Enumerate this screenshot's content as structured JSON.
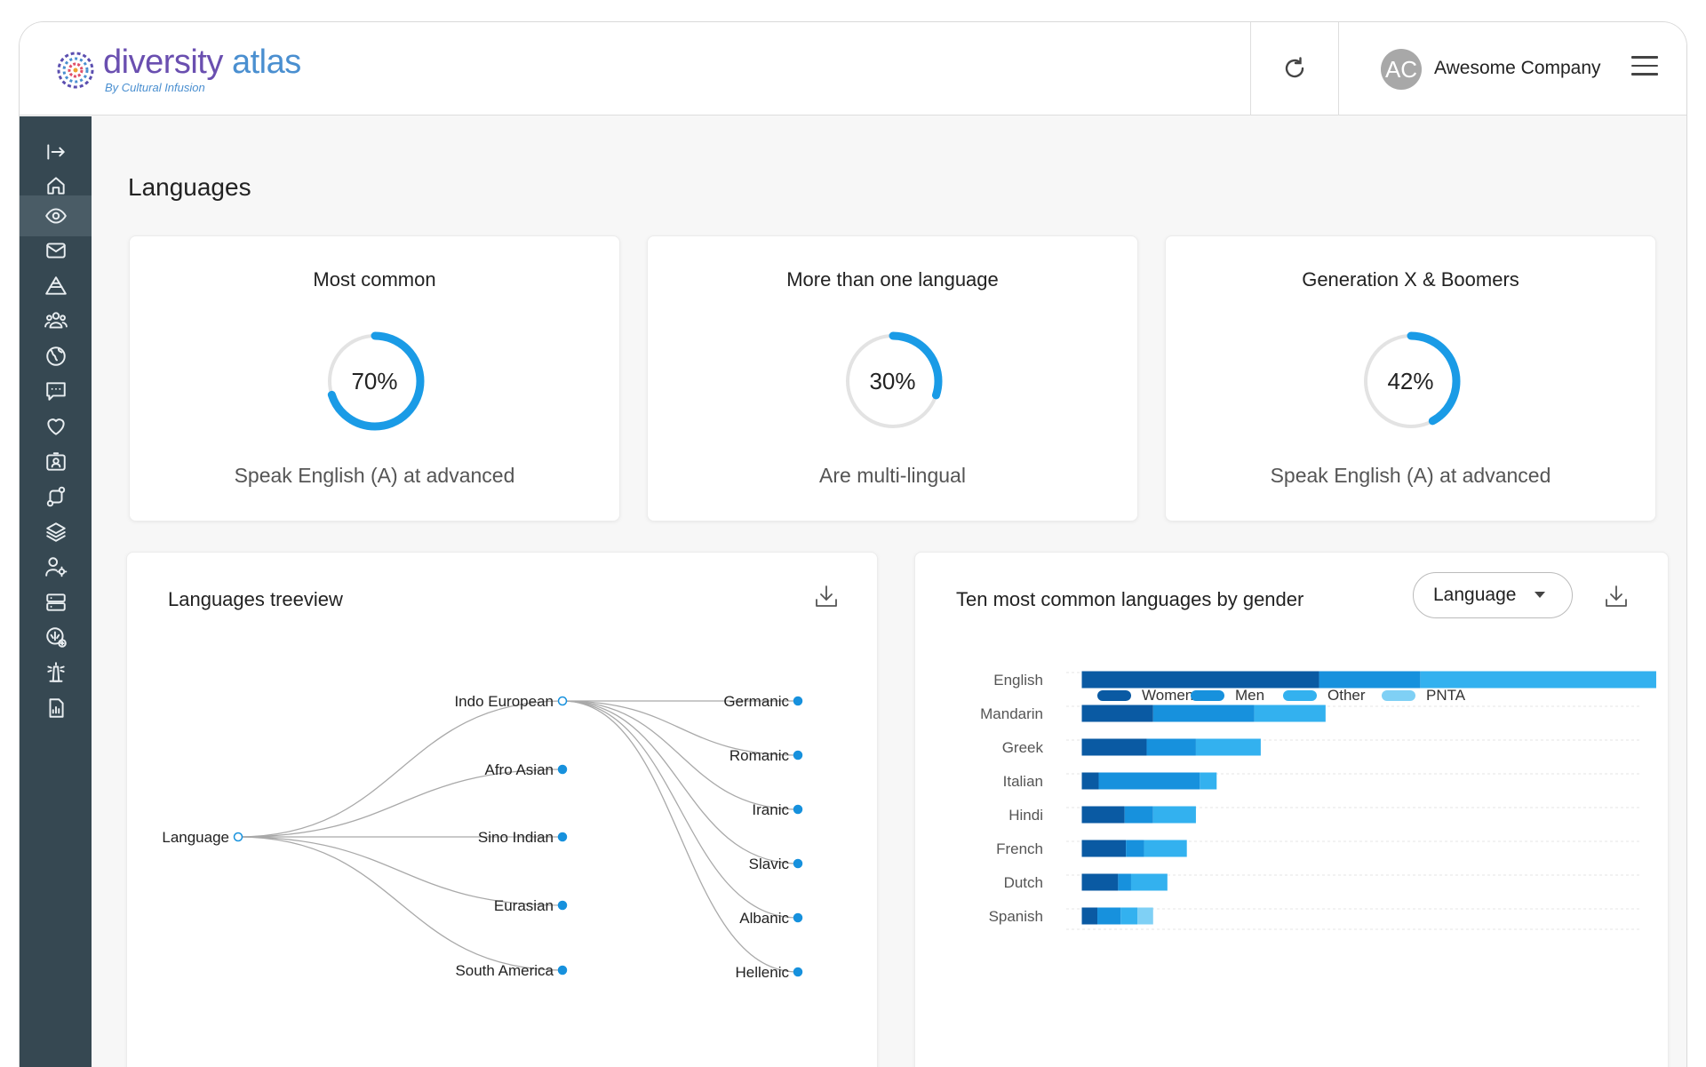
{
  "app": {
    "logo_title_1": "diversity",
    "logo_title_2": "atlas",
    "logo_subtitle": "By Cultural Infusion",
    "user_initials": "AC",
    "company_name": "Awesome Company"
  },
  "colors": {
    "sidebar_bg": "#364852",
    "ring": "#1a9be6",
    "women": "#0a5aa3",
    "men": "#1791dd",
    "other": "#33b1ef",
    "pnta": "#7fd0f5"
  },
  "sidebar": {
    "items": [
      {
        "icon": "collapse-sidebar-icon"
      },
      {
        "icon": "home-icon"
      },
      {
        "icon": "eye-icon",
        "active": true
      },
      {
        "icon": "mail-icon"
      },
      {
        "icon": "pyramid-icon"
      },
      {
        "icon": "people-group-icon"
      },
      {
        "icon": "globe-icon"
      },
      {
        "icon": "chat-icon"
      },
      {
        "icon": "heart-icon"
      },
      {
        "icon": "id-card-icon"
      },
      {
        "icon": "route-icon"
      },
      {
        "icon": "layers-icon"
      },
      {
        "icon": "user-settings-icon"
      },
      {
        "icon": "server-icon"
      },
      {
        "icon": "scale-add-icon"
      },
      {
        "icon": "lighthouse-icon"
      },
      {
        "icon": "report-icon"
      }
    ]
  },
  "page": {
    "title": "Languages"
  },
  "stats": [
    {
      "title": "Most common",
      "value": "70%",
      "percent": 70,
      "caption": "Speak English (A) at advanced"
    },
    {
      "title": "More than one language",
      "value": "30%",
      "percent": 30,
      "caption": "Are multi-lingual"
    },
    {
      "title": "Generation X & Boomers",
      "value": "42%",
      "percent": 42,
      "caption": "Speak English (A) at advanced"
    }
  ],
  "treeview": {
    "title": "Languages treeview",
    "root": "Language",
    "level1": [
      "Indo European",
      "Afro Asian",
      "Sino Indian",
      "Eurasian",
      "South America"
    ],
    "level2": [
      "Germanic",
      "Romanic",
      "Iranic",
      "Slavic",
      "Albanic",
      "Hellenic"
    ]
  },
  "gender_chart": {
    "title": "Ten most common languages by gender",
    "dropdown_value": "Language"
  },
  "chart_data": {
    "type": "bar",
    "orientation": "horizontal",
    "stacked": true,
    "title": "Ten most common languages by gender",
    "categories": [
      "English",
      "Mandarin",
      "Greek",
      "Italian",
      "Hindi",
      "French",
      "Dutch",
      "Spanish"
    ],
    "series": [
      {
        "name": "Women",
        "values": [
          183,
          55,
          50,
          13,
          33,
          34,
          28,
          12
        ]
      },
      {
        "name": "Men",
        "values": [
          78,
          78,
          38,
          78,
          22,
          14,
          10,
          18
        ]
      },
      {
        "name": "Other",
        "values": [
          182,
          55,
          50,
          13,
          33,
          33,
          28,
          13
        ]
      },
      {
        "name": "PNTA",
        "values": [
          0,
          0,
          0,
          0,
          0,
          0,
          0,
          12
        ]
      }
    ],
    "xlim": [
      -12,
      430
    ],
    "xticks": [
      0,
      100,
      200,
      300,
      400
    ],
    "legend": "top",
    "grid": true
  }
}
